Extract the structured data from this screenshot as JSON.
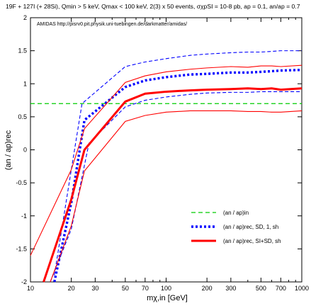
{
  "chart_data": {
    "type": "line",
    "title": "19F + 127I (+ 28Si), Qmin > 5 keV, Qmax < 100 keV, 2(3) x 50 events, σχpSI = 10-8 pb, ap = 0.1, an/ap = 0.7",
    "annotation": "AMIDAS   http://pisrv0.pit.physik.uni-tuebingen.de/darkmatter/amidas/",
    "xlabel": "mχ,in [GeV]",
    "ylabel": "(an / ap)rec",
    "xscale": "log",
    "xlim": [
      10,
      1000
    ],
    "ylim": [
      -2,
      2
    ],
    "xticks": [
      10,
      20,
      30,
      50,
      70,
      100,
      200,
      300,
      500,
      700,
      1000
    ],
    "xtick_labels": [
      "10",
      "20",
      "30",
      "50",
      "70",
      "100",
      "200",
      "300",
      "500",
      "700",
      "1000"
    ],
    "yticks": [
      -2,
      -1.5,
      -1,
      -0.5,
      0,
      0.5,
      1,
      1.5,
      2
    ],
    "ytick_labels": [
      "-2",
      "-1.5",
      "-1",
      "-0.5",
      "0",
      "0.5",
      "1",
      "1.5",
      "2"
    ],
    "legend_position": "bottom-right",
    "series": [
      {
        "name": "(an / ap)in",
        "color": "#00cc00",
        "style": "dashed",
        "x": [
          10,
          1000
        ],
        "y": [
          0.7,
          0.7
        ]
      },
      {
        "name": "(an / ap)rec, SD, 1, sh",
        "color": "#0000ff",
        "style": "dotted-thick",
        "x": [
          15,
          20,
          25,
          50,
          70,
          100,
          150,
          200,
          300,
          400,
          500,
          600,
          700,
          1000
        ],
        "y": [
          -2,
          -0.8,
          0.45,
          0.95,
          1.05,
          1.1,
          1.14,
          1.15,
          1.17,
          1.17,
          1.18,
          1.19,
          1.2,
          1.21
        ],
        "band_upper": {
          "x": [
            15,
            20,
            24,
            50,
            70,
            100,
            150,
            200,
            300,
            400,
            500,
            600,
            700,
            1000
          ],
          "y": [
            -1.9,
            -0.3,
            0.7,
            1.26,
            1.33,
            1.38,
            1.43,
            1.45,
            1.47,
            1.48,
            1.48,
            1.49,
            1.5,
            1.5
          ]
        },
        "band_lower": {
          "x": [
            14,
            20,
            27,
            50,
            70,
            100,
            150,
            200,
            300,
            400,
            500,
            600,
            700,
            1000
          ],
          "y": [
            -2,
            -1.2,
            0.1,
            0.65,
            0.75,
            0.8,
            0.84,
            0.86,
            0.87,
            0.87,
            0.88,
            0.88,
            0.88,
            0.88
          ]
        }
      },
      {
        "name": "(an / ap)rec, SI+SD, sh",
        "color": "#ff0000",
        "style": "solid-thick",
        "x": [
          12.5,
          20,
          25,
          50,
          70,
          100,
          150,
          200,
          300,
          400,
          500,
          600,
          700,
          1000
        ],
        "y": [
          -2,
          -0.75,
          0.0,
          0.73,
          0.85,
          0.88,
          0.9,
          0.91,
          0.92,
          0.93,
          0.92,
          0.93,
          0.91,
          0.93
        ],
        "band_upper": {
          "x": [
            10,
            20,
            25,
            50,
            70,
            100,
            150,
            200,
            300,
            400,
            500,
            600,
            700,
            1000
          ],
          "y": [
            -1.6,
            -0.3,
            0.32,
            1.02,
            1.12,
            1.18,
            1.22,
            1.24,
            1.26,
            1.25,
            1.27,
            1.27,
            1.26,
            1.28
          ]
        },
        "band_lower": {
          "x": [
            14,
            20,
            25,
            50,
            70,
            100,
            150,
            200,
            300,
            400,
            500,
            600,
            700,
            1000
          ],
          "y": [
            -2,
            -1.15,
            -0.32,
            0.43,
            0.52,
            0.57,
            0.59,
            0.59,
            0.59,
            0.58,
            0.58,
            0.57,
            0.57,
            0.59
          ]
        }
      }
    ]
  }
}
